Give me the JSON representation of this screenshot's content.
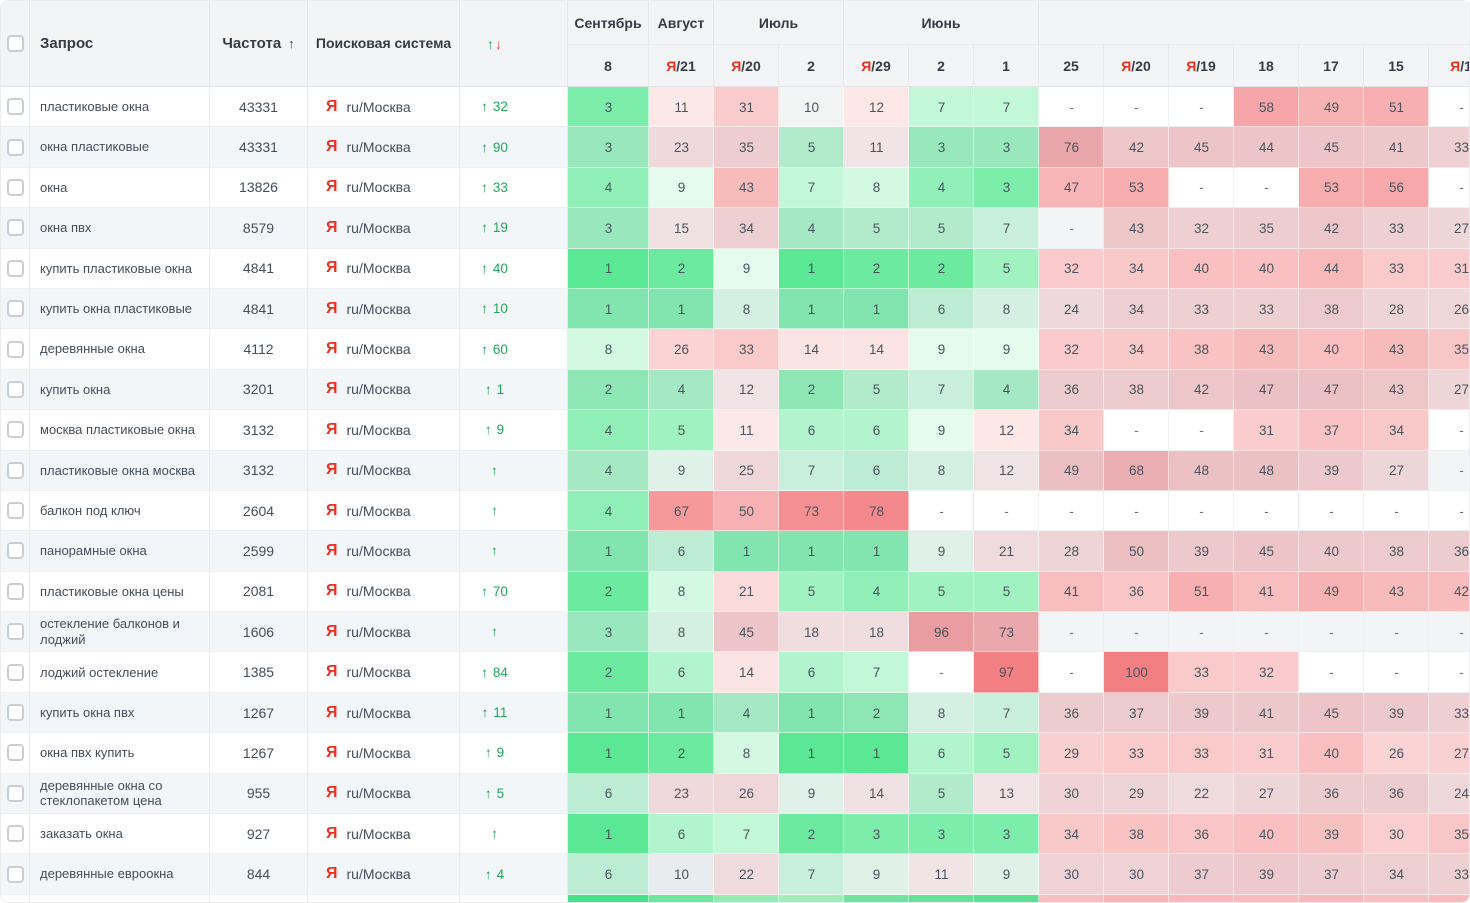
{
  "table": {
    "columns": {
      "query": "Запрос",
      "frequency": "Частота",
      "frequency_sort_icon": "↑",
      "search_engine": "Поисковая система",
      "change_up_icon": "↑",
      "change_down_icon": "↓"
    },
    "month_groups": [
      {
        "label": "Сентябрь",
        "span": 1
      },
      {
        "label": "Август",
        "span": 1
      },
      {
        "label": "Июль",
        "span": 2
      },
      {
        "label": "Июнь",
        "span": 3
      },
      {
        "label": "",
        "span": 7
      }
    ],
    "date_columns": [
      {
        "prefix": "",
        "day": "8"
      },
      {
        "prefix": "Я",
        "day": "/21"
      },
      {
        "prefix": "Я",
        "day": "/20"
      },
      {
        "prefix": "",
        "day": "2"
      },
      {
        "prefix": "Я",
        "day": "/29"
      },
      {
        "prefix": "",
        "day": "2"
      },
      {
        "prefix": "",
        "day": "1"
      },
      {
        "prefix": "",
        "day": "25"
      },
      {
        "prefix": "Я",
        "day": "/20"
      },
      {
        "prefix": "Я",
        "day": "/19"
      },
      {
        "prefix": "",
        "day": "18"
      },
      {
        "prefix": "",
        "day": "17"
      },
      {
        "prefix": "",
        "day": "15"
      },
      {
        "prefix": "Я",
        "day": "/1"
      }
    ],
    "search_engine_value": {
      "icon": "Я",
      "label": "ru/Москва"
    },
    "rows": [
      {
        "query": "пластиковые окна",
        "frequency": "43331",
        "change": "32",
        "positions": [
          "3",
          "11",
          "31",
          "10",
          "12",
          "7",
          "7",
          "-",
          "-",
          "-",
          "58",
          "49",
          "51",
          "-"
        ]
      },
      {
        "query": "окна пластиковые",
        "frequency": "43331",
        "change": "90",
        "positions": [
          "3",
          "23",
          "35",
          "5",
          "11",
          "3",
          "3",
          "76",
          "42",
          "45",
          "44",
          "45",
          "41",
          "33"
        ]
      },
      {
        "query": "окна",
        "frequency": "13826",
        "change": "33",
        "positions": [
          "4",
          "9",
          "43",
          "7",
          "8",
          "4",
          "3",
          "47",
          "53",
          "-",
          "-",
          "53",
          "56",
          "-"
        ]
      },
      {
        "query": "окна пвх",
        "frequency": "8579",
        "change": "19",
        "positions": [
          "3",
          "15",
          "34",
          "4",
          "5",
          "5",
          "7",
          "-",
          "43",
          "32",
          "35",
          "42",
          "33",
          "27"
        ]
      },
      {
        "query": "купить пластиковые окна",
        "frequency": "4841",
        "change": "40",
        "positions": [
          "1",
          "2",
          "9",
          "1",
          "2",
          "2",
          "5",
          "32",
          "34",
          "40",
          "40",
          "44",
          "33",
          "31"
        ]
      },
      {
        "query": "купить окна пластиковые",
        "frequency": "4841",
        "change": "10",
        "positions": [
          "1",
          "1",
          "8",
          "1",
          "1",
          "6",
          "8",
          "24",
          "34",
          "33",
          "33",
          "38",
          "28",
          "26"
        ]
      },
      {
        "query": "деревянные окна",
        "frequency": "4112",
        "change": "60",
        "positions": [
          "8",
          "26",
          "33",
          "14",
          "14",
          "9",
          "9",
          "32",
          "34",
          "38",
          "43",
          "40",
          "43",
          "35"
        ]
      },
      {
        "query": "купить окна",
        "frequency": "3201",
        "change": "1",
        "positions": [
          "2",
          "4",
          "12",
          "2",
          "5",
          "7",
          "4",
          "36",
          "38",
          "42",
          "47",
          "47",
          "43",
          "27"
        ]
      },
      {
        "query": "москва пластиковые окна",
        "frequency": "3132",
        "change": "9",
        "positions": [
          "4",
          "5",
          "11",
          "6",
          "6",
          "9",
          "12",
          "34",
          "-",
          "-",
          "31",
          "37",
          "34",
          "-"
        ]
      },
      {
        "query": "пластиковые окна москва",
        "frequency": "3132",
        "change": "",
        "positions": [
          "4",
          "9",
          "25",
          "7",
          "6",
          "8",
          "12",
          "49",
          "68",
          "48",
          "48",
          "39",
          "27",
          "-"
        ]
      },
      {
        "query": "балкон под ключ",
        "frequency": "2604",
        "change": "",
        "positions": [
          "4",
          "67",
          "50",
          "73",
          "78",
          "-",
          "-",
          "-",
          "-",
          "-",
          "-",
          "-",
          "-",
          "-"
        ]
      },
      {
        "query": "панорамные окна",
        "frequency": "2599",
        "change": "",
        "positions": [
          "1",
          "6",
          "1",
          "1",
          "1",
          "9",
          "21",
          "28",
          "50",
          "39",
          "45",
          "40",
          "38",
          "36"
        ]
      },
      {
        "query": "пластиковые окна цены",
        "frequency": "2081",
        "change": "70",
        "positions": [
          "2",
          "8",
          "21",
          "5",
          "4",
          "5",
          "5",
          "41",
          "36",
          "51",
          "41",
          "49",
          "43",
          "42"
        ]
      },
      {
        "query": "остекление балконов и лоджий",
        "frequency": "1606",
        "change": "",
        "positions": [
          "3",
          "8",
          "45",
          "18",
          "18",
          "96",
          "73",
          "-",
          "-",
          "-",
          "-",
          "-",
          "-",
          "-"
        ]
      },
      {
        "query": "лоджий остекление",
        "frequency": "1385",
        "change": "84",
        "positions": [
          "2",
          "6",
          "14",
          "6",
          "7",
          "-",
          "97",
          "-",
          "100",
          "33",
          "32",
          "-",
          "-",
          "-"
        ]
      },
      {
        "query": "купить окна пвх",
        "frequency": "1267",
        "change": "11",
        "positions": [
          "1",
          "1",
          "4",
          "1",
          "2",
          "8",
          "7",
          "36",
          "37",
          "39",
          "41",
          "45",
          "39",
          "33"
        ]
      },
      {
        "query": "окна пвх купить",
        "frequency": "1267",
        "change": "9",
        "positions": [
          "1",
          "2",
          "8",
          "1",
          "1",
          "6",
          "5",
          "29",
          "33",
          "33",
          "31",
          "40",
          "26",
          "27"
        ]
      },
      {
        "query": "деревянные окна со стеклопакетом цена",
        "frequency": "955",
        "change": "5",
        "positions": [
          "6",
          "23",
          "26",
          "9",
          "14",
          "5",
          "13",
          "30",
          "29",
          "22",
          "27",
          "36",
          "36",
          "24"
        ]
      },
      {
        "query": "заказать окна",
        "frequency": "927",
        "change": "",
        "positions": [
          "1",
          "6",
          "7",
          "2",
          "3",
          "3",
          "3",
          "34",
          "38",
          "36",
          "40",
          "39",
          "30",
          "35"
        ]
      },
      {
        "query": "деревянные евроокна",
        "frequency": "844",
        "change": "4",
        "positions": [
          "6",
          "10",
          "22",
          "7",
          "9",
          "11",
          "9",
          "30",
          "30",
          "37",
          "39",
          "37",
          "34",
          "33"
        ]
      }
    ],
    "partial_row_colors": [
      "#45e287",
      "#6ee69c",
      "#93ebb2",
      "#a3edbb",
      "#70e49d",
      "#64e295",
      "#5ae090",
      "#f8bdbf",
      "#f9b4b6",
      "#f9b7b9",
      "#f9bbbd",
      "#f8b8ba",
      "#f9bec0",
      "#f8bbbd"
    ]
  },
  "colors": {
    "green_base": "#52e78f",
    "red_base": "#f27f82",
    "neutral_10": "#f2f3f3",
    "stripe_overlay": "#d5dce3",
    "stripe_row_bg": "#f3f6f9",
    "change_green": "#21a95c",
    "change_red": "#e84f4f",
    "yandex_red": "#ef3124"
  }
}
